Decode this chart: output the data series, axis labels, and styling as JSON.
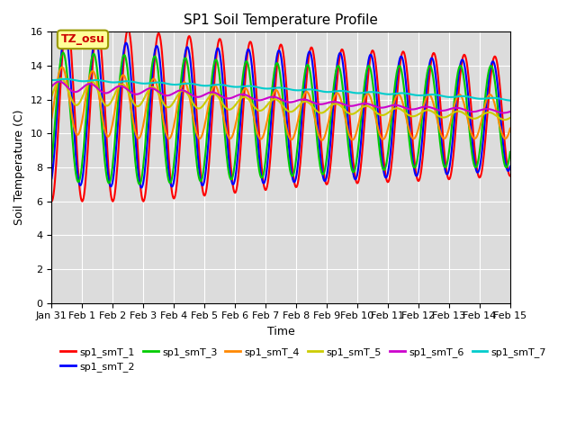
{
  "title": "SP1 Soil Temperature Profile",
  "xlabel": "Time",
  "ylabel": "Soil Temperature (C)",
  "ylim": [
    0,
    16
  ],
  "yticks": [
    0,
    2,
    4,
    6,
    8,
    10,
    12,
    14,
    16
  ],
  "xtick_labels": [
    "Jan 31",
    "Feb 1",
    "Feb 2",
    "Feb 3",
    "Feb 4",
    "Feb 5",
    "Feb 6",
    "Feb 7",
    "Feb 8",
    "Feb 9",
    "Feb 10",
    "Feb 11",
    "Feb 12",
    "Feb 13",
    "Feb 14",
    "Feb 15"
  ],
  "series_colors": [
    "#ff0000",
    "#0000ff",
    "#00cc00",
    "#ff8800",
    "#cccc00",
    "#cc00cc",
    "#00cccc"
  ],
  "series_labels": [
    "sp1_smT_1",
    "sp1_smT_2",
    "sp1_smT_3",
    "sp1_smT_4",
    "sp1_smT_5",
    "sp1_smT_6",
    "sp1_smT_7"
  ],
  "annotation_text": "TZ_osu",
  "annotation_color": "#cc0000",
  "annotation_bg": "#ffff99",
  "annotation_border": "#999900",
  "background_color": "#dcdcdc",
  "line_width": 1.5,
  "n_days": 15,
  "n_points_per_day": 48
}
